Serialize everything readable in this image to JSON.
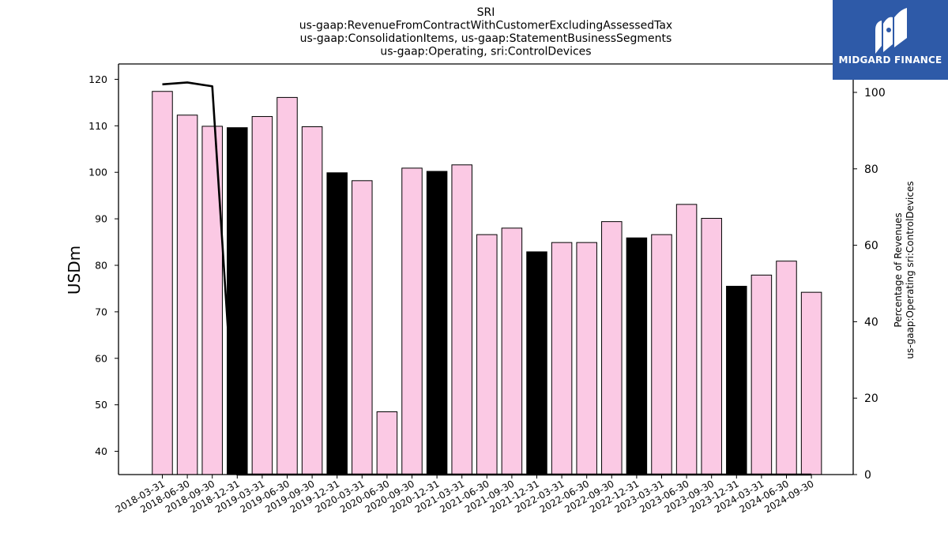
{
  "chart_data": {
    "type": "bar",
    "title_lines": [
      "SRI",
      "us-gaap:RevenueFromContractWithCustomerExcludingAssessedTax",
      "us-gaap:ConsolidationItems, us-gaap:StatementBusinessSegments",
      "us-gaap:Operating, sri:ControlDevices"
    ],
    "ylabel": "USDm",
    "ylabel_right": [
      "Percentage of Revenues",
      "us-gaap:Operating sri:ControlDevices"
    ],
    "ylim": [
      35,
      123.3
    ],
    "yticks": [
      40,
      50,
      60,
      70,
      80,
      90,
      100,
      110,
      120
    ],
    "ylim_right": [
      0,
      100
    ],
    "yticks_right": [
      0,
      20,
      40,
      60,
      80,
      100
    ],
    "categories": [
      "2018-03-31",
      "2018-06-30",
      "2018-09-30",
      "2018-12-31",
      "2019-03-31",
      "2019-06-30",
      "2019-09-30",
      "2019-12-31",
      "2020-03-31",
      "2020-06-30",
      "2020-09-30",
      "2020-12-31",
      "2021-03-31",
      "2021-06-30",
      "2021-09-30",
      "2021-12-31",
      "2022-03-31",
      "2022-06-30",
      "2022-09-30",
      "2022-12-31",
      "2023-03-31",
      "2023-06-30",
      "2023-09-30",
      "2023-12-31",
      "2024-03-31",
      "2024-06-30",
      "2024-09-30"
    ],
    "series": [
      {
        "values": [
          117.4,
          112.3,
          109.9,
          109.6,
          112.0,
          116.1,
          109.8,
          99.9,
          98.2,
          48.5,
          100.9,
          100.2,
          101.6,
          86.6,
          88.0,
          82.9,
          84.9,
          84.9,
          89.4,
          85.9,
          86.6,
          93.1,
          90.1,
          75.5,
          77.9,
          80.9,
          74.2
        ]
      },
      {
        "values": [
          102.1,
          102.6,
          101.6,
          0,
          0,
          0,
          0,
          0,
          0,
          0,
          0,
          0,
          0,
          0,
          0,
          0,
          0,
          0,
          0,
          0,
          0,
          0,
          0,
          0,
          0,
          0,
          0
        ]
      }
    ],
    "bar_colors": {
      "quarter": "#fbc9e4",
      "year_end": "#000000",
      "edge": "#000000"
    },
    "year_end_indices": [
      3,
      7,
      11,
      15,
      19,
      23
    ],
    "line_color": "#000000",
    "grid": false
  },
  "logo": {
    "text": "MIDGARD FINANCE",
    "background": "#2e5aa8",
    "text_color": "#ffffff"
  }
}
